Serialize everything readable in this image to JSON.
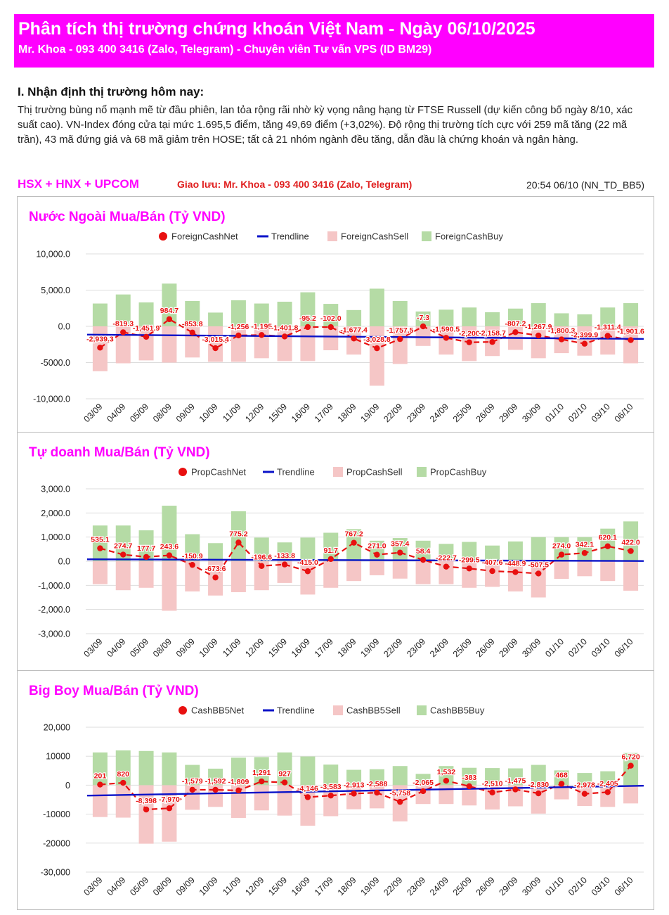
{
  "header": {
    "title": "Phân tích thị trường chứng khoán Việt Nam  -  Ngày 06/10/2025",
    "subtitle": "Mr. Khoa - 093 400 3416 (Zalo, Telegram) - Chuyên viên Tư vấn VPS (ID BM29)",
    "bg_color": "#ff00ff"
  },
  "section": {
    "title": "I. Nhận định thị trường hôm nay:",
    "body": "Thị trường bùng nổ mạnh mẽ từ đầu phiên, lan tỏa rộng rãi nhờ kỳ vọng nâng hạng từ FTSE Russell (dự kiến công bố ngày 8/10, xác suất cao). VN-Index đóng cửa tại mức 1.695,5 điểm, tăng 49,69 điểm (+3,02%). Độ rộng thị trường tích cực với 259 mã tăng (22 mã trần), 43 mã đứng giá và 68 mã giảm trên HOSE; tất cả 21 nhóm ngành đều tăng, dẫn đầu là chứng khoán và ngân hàng."
  },
  "market_label": "HSX + HNX + UPCOM",
  "contact_label": "Giao lưu: Mr. Khoa - 093 400 3416 (Zalo, Telegram)",
  "timestamp": "20:54 06/10 (NN_TD_BB5)",
  "colors": {
    "title": "#ff00ff",
    "net": "#e81010",
    "trend": "#0a12c8",
    "sell": "#f5c6c6",
    "buy": "#b5dba5",
    "label": "#e81010",
    "grid": "#dddddd"
  },
  "chart_data": [
    {
      "type": "bar",
      "title": "Nước Ngoài Mua/Bán (Tỷ VND)",
      "categories": [
        "03/09",
        "04/09",
        "05/09",
        "08/09",
        "09/09",
        "10/09",
        "11/09",
        "12/09",
        "15/09",
        "16/09",
        "17/09",
        "18/09",
        "19/09",
        "22/09",
        "23/09",
        "24/09",
        "25/09",
        "26/09",
        "29/09",
        "30/09",
        "01/10",
        "02/10",
        "03/10",
        "06/10"
      ],
      "legend": [
        "ForeignCashNet",
        "Trendline",
        "ForeignCashSell",
        "ForeignCashBuy"
      ],
      "yticks": [
        "10,000.0",
        "5,000.0",
        "0.0",
        "-5000.0",
        "-10,000.0"
      ],
      "ytick_values": [
        10000,
        5000,
        0,
        -5000,
        -10000
      ],
      "ylim": [
        -10000,
        10000
      ],
      "series": [
        {
          "name": "ForeignCashBuy",
          "values": [
            3150,
            4400,
            3300,
            5900,
            3500,
            1900,
            3600,
            3150,
            3400,
            4700,
            3100,
            2250,
            5200,
            3500,
            2050,
            2300,
            2600,
            1950,
            2450,
            3200,
            1800,
            1650,
            2600,
            3200
          ]
        },
        {
          "name": "ForeignCashSell",
          "values": [
            -6200,
            -5100,
            -4700,
            -5000,
            -4300,
            -4900,
            -4900,
            -4400,
            -4800,
            -4800,
            -3300,
            -3900,
            -8200,
            -5200,
            -2700,
            -3900,
            -4800,
            -4100,
            -3250,
            -4400,
            -3700,
            -4050,
            -3900,
            -5100
          ]
        },
        {
          "name": "ForeignCashNet",
          "values": [
            -2939.3,
            -819.3,
            -1451.9,
            984.7,
            -853.8,
            -3015.4,
            -1256,
            -1195,
            -1401.8,
            -95.2,
            -102.0,
            -1677.4,
            -3028.8,
            -1757.5,
            -7.3,
            -1590.5,
            -2200,
            -2158.7,
            -807.2,
            -1267.9,
            -1800.3,
            -2399.9,
            -1311.4,
            -1901.6
          ]
        }
      ],
      "labels": [
        "-2,939.3",
        "-819.3",
        "-1,451.9",
        "984.7",
        "-853.8",
        "-3,015.4",
        "-1,256",
        "-1,195",
        "-1,401.8",
        "-95.2",
        "-102.0",
        "-1,677.4",
        "-3,028.8",
        "-1,757.5",
        "-7.3",
        "-1,590.5",
        "-2,200",
        "-2,158.7",
        "-807.2",
        "-1,267.9",
        "-1,800.3",
        "-2,399.9",
        "-1,311.4",
        "-1,901.6"
      ],
      "trendline": [
        -1145,
        -1741
      ]
    },
    {
      "type": "bar",
      "title": "Tự doanh Mua/Bán (Tỷ VND)",
      "categories": [
        "03/09",
        "04/09",
        "05/09",
        "08/09",
        "09/09",
        "10/09",
        "11/09",
        "12/09",
        "15/09",
        "16/09",
        "17/09",
        "18/09",
        "19/09",
        "22/09",
        "23/09",
        "24/09",
        "25/09",
        "26/09",
        "29/09",
        "30/09",
        "01/10",
        "02/10",
        "03/10",
        "06/10"
      ],
      "legend": [
        "PropCashNet",
        "Trendline",
        "PropCashSell",
        "PropCashBuy"
      ],
      "yticks": [
        "3,000.0",
        "2,000.0",
        "1,000.0",
        "0.0",
        "-1,000.0",
        "-2,000.0",
        "-3,000.0"
      ],
      "ytick_values": [
        3000,
        2000,
        1000,
        0,
        -1000,
        -2000,
        -3000
      ],
      "ylim": [
        -3000,
        3000
      ],
      "series": [
        {
          "name": "PropCashBuy",
          "values": [
            1480,
            1480,
            1280,
            2300,
            1120,
            750,
            2070,
            980,
            780,
            980,
            1180,
            1330,
            850,
            960,
            850,
            720,
            800,
            650,
            820,
            1000,
            1000,
            1000,
            1350,
            1650
          ]
        },
        {
          "name": "PropCashSell",
          "values": [
            -950,
            -1200,
            -1100,
            -2050,
            -1250,
            -1420,
            -1280,
            -1200,
            -900,
            -1380,
            -1100,
            -820,
            -580,
            -720,
            -950,
            -950,
            -1100,
            -1060,
            -1250,
            -1500,
            -730,
            -620,
            -820,
            -1220
          ]
        },
        {
          "name": "PropCashNet",
          "values": [
            535.1,
            274.7,
            177.7,
            243.6,
            -150.9,
            -673.6,
            775.2,
            -196.6,
            -133.8,
            -415.0,
            91.7,
            767.2,
            271.0,
            357.4,
            58.4,
            -222.7,
            -299.5,
            -407.6,
            -448.9,
            -507.5,
            274.0,
            342.1,
            620.1,
            422.0
          ]
        }
      ],
      "labels": [
        "535.1",
        "274.7",
        "177.7",
        "243.6",
        "-150.9",
        "-673.6",
        "775.2",
        "-196.6",
        "-133.8",
        "-415.0",
        "91.7",
        "767.2",
        "271.0",
        "357.4",
        "58.4",
        "-222.7",
        "-299.5",
        "-407.6",
        "-448.9",
        "-507.5",
        "274.0",
        "342.1",
        "620.1",
        "422.0"
      ],
      "trendline": [
        80,
        10
      ]
    },
    {
      "type": "bar",
      "title": "Big Boy Mua/Bán (Tỷ VND)",
      "categories": [
        "03/09",
        "04/09",
        "05/09",
        "08/09",
        "09/09",
        "10/09",
        "11/09",
        "12/09",
        "15/09",
        "16/09",
        "17/09",
        "18/09",
        "19/09",
        "22/09",
        "23/09",
        "24/09",
        "25/09",
        "26/09",
        "29/09",
        "30/09",
        "01/10",
        "02/10",
        "03/10",
        "06/10"
      ],
      "legend": [
        "CashBB5Net",
        "Trendline",
        "CashBB5Sell",
        "CashBB5Buy"
      ],
      "yticks": [
        "20,000",
        "10000",
        "0",
        "-10000",
        "-20000",
        "-30,000"
      ],
      "ytick_values": [
        20000,
        10000,
        0,
        -10000,
        -20000,
        -30000
      ],
      "ylim": [
        -30000,
        20000
      ],
      "series": [
        {
          "name": "CashBB5Buy",
          "values": [
            11300,
            12000,
            11800,
            11300,
            7000,
            5700,
            9500,
            9700,
            11300,
            9900,
            7100,
            5300,
            5500,
            6600,
            3900,
            6600,
            6000,
            5900,
            5800,
            7000,
            5100,
            4200,
            4800,
            11100
          ]
        },
        {
          "name": "CashBB5Sell",
          "values": [
            -11000,
            -11200,
            -20200,
            -19500,
            -8500,
            -7500,
            -11300,
            -8700,
            -10500,
            -14000,
            -10700,
            -8300,
            -8000,
            -12500,
            -6500,
            -6500,
            -7000,
            -8400,
            -7300,
            -9800,
            -4900,
            -7200,
            -7500,
            -6300
          ]
        },
        {
          "name": "CashBB5Net",
          "values": [
            201,
            820,
            -8398,
            -7970,
            -1579,
            -1592,
            -1809,
            1291,
            927,
            -4146,
            -3583,
            -2913,
            -2588,
            -5758,
            -2065,
            1532,
            -383,
            -2510,
            -1475,
            -2830,
            468,
            -2978,
            -2405,
            6720
          ]
        }
      ],
      "labels": [
        "201",
        "820",
        "-8,398",
        "-7,970",
        "-1,579",
        "-1,592",
        "-1,809",
        "1,291",
        "927",
        "-4,146",
        "-3,583",
        "-2,913",
        "-2,588",
        "-5,758",
        "-2,065",
        "1,532",
        "-383",
        "-2,510",
        "-1,475",
        "-2,830",
        "468",
        "-2,978",
        "-2,405",
        "6,720"
      ],
      "trendline": [
        -3600,
        -200
      ]
    }
  ]
}
